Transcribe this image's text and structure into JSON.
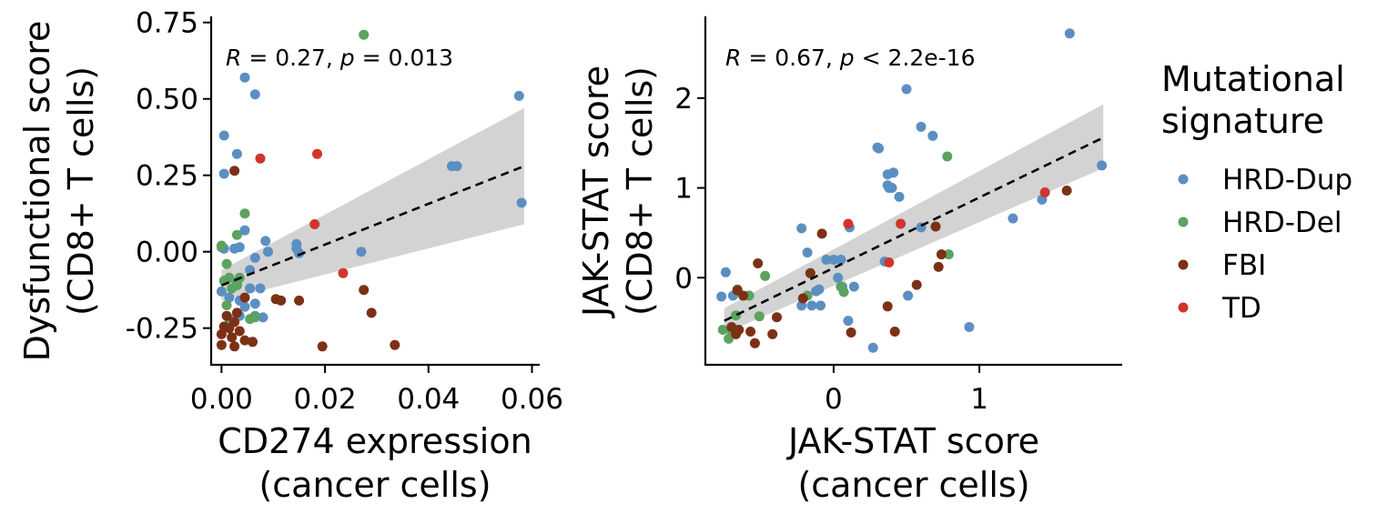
{
  "colors": {
    "HRD-Dup": "#5b8fc2",
    "HRD-Del": "#5ba35e",
    "FBI": "#7c3116",
    "TD": "#d0352b",
    "band": "#d3d3d3",
    "fit": "#000000"
  },
  "legend": {
    "title_line1": "Mutational",
    "title_line2": "signature",
    "entries": [
      "HRD-Dup",
      "HRD-Del",
      "FBI",
      "TD"
    ],
    "placement": "right"
  },
  "chart_data": [
    {
      "type": "scatter",
      "xlabel_line1": "CD274 expression",
      "xlabel_line2": "(cancer cells)",
      "ylabel_line1": "Dysfunctional score",
      "ylabel_line2": "(CD8+ T cells)",
      "annotation": {
        "r_label": "R",
        "r_text": " = 0.27, ",
        "p_label": "p",
        "p_text": " = 0.013"
      },
      "xlim": [
        -0.002,
        0.0615
      ],
      "ylim": [
        -0.37,
        0.77
      ],
      "xticks": [
        0.0,
        0.02,
        0.04,
        0.06
      ],
      "xtick_labels": [
        "0.00",
        "0.02",
        "0.04",
        "0.06"
      ],
      "yticks": [
        -0.25,
        0.0,
        0.25,
        0.5,
        0.75
      ],
      "ytick_labels": [
        "-0.25",
        "0.00",
        "0.25",
        "0.50",
        "0.75"
      ],
      "fit": {
        "x": [
          0.0,
          0.0585
        ],
        "y": [
          -0.11,
          0.28
        ]
      },
      "band": {
        "x": [
          0.0,
          0.0585
        ],
        "lower": [
          -0.16,
          0.09
        ],
        "upper": [
          -0.06,
          0.47
        ]
      },
      "series": [
        {
          "name": "HRD-Dup",
          "points": [
            [
              0.0045,
              0.57
            ],
            [
              0.0065,
              0.515
            ],
            [
              0.0005,
              0.38
            ],
            [
              0.003,
              0.32
            ],
            [
              0.0005,
              0.255
            ],
            [
              0.0045,
              0.07
            ],
            [
              0.0085,
              0.035
            ],
            [
              0.0,
              0.015
            ],
            [
              0.0005,
              0.01
            ],
            [
              0.0025,
              0.01
            ],
            [
              0.0035,
              0.015
            ],
            [
              0.0145,
              0.025
            ],
            [
              0.0145,
              0.01
            ],
            [
              0.015,
              -0.005
            ],
            [
              0.009,
              0.0
            ],
            [
              0.0065,
              -0.02
            ],
            [
              0.0055,
              -0.06
            ],
            [
              0.003,
              -0.1
            ],
            [
              0.0055,
              -0.12
            ],
            [
              0.0075,
              -0.12
            ],
            [
              0.0015,
              -0.15
            ],
            [
              0.0035,
              -0.16
            ],
            [
              0.0045,
              -0.18
            ],
            [
              0.0065,
              -0.17
            ],
            [
              0.0035,
              -0.21
            ],
            [
              0.0065,
              -0.21
            ],
            [
              0.008,
              -0.215
            ],
            [
              0.0,
              -0.13
            ],
            [
              0.0015,
              -0.22
            ],
            [
              0.027,
              0.0
            ],
            [
              0.0445,
              0.28
            ],
            [
              0.0455,
              0.28
            ],
            [
              0.0575,
              0.51
            ],
            [
              0.058,
              0.16
            ]
          ]
        },
        {
          "name": "HRD-Del",
          "points": [
            [
              0.0275,
              0.71
            ],
            [
              0.0045,
              0.125
            ],
            [
              0.003,
              0.055
            ],
            [
              0.0,
              0.02
            ],
            [
              0.001,
              -0.04
            ],
            [
              0.0015,
              -0.085
            ],
            [
              0.0035,
              -0.085
            ],
            [
              0.0005,
              -0.095
            ],
            [
              0.003,
              -0.11
            ],
            [
              0.002,
              -0.12
            ],
            [
              0.001,
              -0.175
            ],
            [
              0.0055,
              -0.22
            ],
            [
              0.0065,
              -0.215
            ],
            [
              0.0015,
              -0.24
            ]
          ]
        },
        {
          "name": "FBI",
          "points": [
            [
              0.0025,
              0.265
            ],
            [
              0.0045,
              -0.15
            ],
            [
              0.003,
              -0.2
            ],
            [
              0.001,
              -0.21
            ],
            [
              0.0025,
              -0.23
            ],
            [
              0.0035,
              -0.26
            ],
            [
              0.0015,
              -0.25
            ],
            [
              0.0,
              -0.27
            ],
            [
              0.002,
              -0.28
            ],
            [
              0.0045,
              -0.29
            ],
            [
              0.006,
              -0.295
            ],
            [
              0.0025,
              -0.31
            ],
            [
              0.0,
              -0.305
            ],
            [
              0.0005,
              -0.245
            ],
            [
              0.0105,
              -0.155
            ],
            [
              0.0115,
              -0.16
            ],
            [
              0.015,
              -0.16
            ],
            [
              0.0195,
              -0.31
            ],
            [
              0.0275,
              -0.125
            ],
            [
              0.029,
              -0.2
            ],
            [
              0.0335,
              -0.305
            ]
          ]
        },
        {
          "name": "TD",
          "points": [
            [
              0.0075,
              0.305
            ],
            [
              0.0185,
              0.32
            ],
            [
              0.018,
              0.09
            ],
            [
              0.0235,
              -0.07
            ]
          ]
        }
      ]
    },
    {
      "type": "scatter",
      "xlabel_line1": "JAK-STAT score",
      "xlabel_line2": "(cancer cells)",
      "ylabel_line1": "JAK-STAT score",
      "ylabel_line2": "(CD8+ T cells)",
      "annotation": {
        "r_label": "R",
        "r_text": " = 0.67, ",
        "p_label": "p",
        "p_text": " < 2.2e-16"
      },
      "xlim": [
        -0.88,
        1.98
      ],
      "ylim": [
        -0.97,
        2.91
      ],
      "xticks": [
        0,
        1
      ],
      "xtick_labels": [
        "0",
        "1"
      ],
      "yticks": [
        0,
        1,
        2
      ],
      "ytick_labels": [
        "0",
        "1",
        "2"
      ],
      "fit": {
        "x": [
          -0.75,
          1.85
        ],
        "y": [
          -0.48,
          1.56
        ]
      },
      "band": {
        "x": [
          -0.75,
          1.85
        ],
        "lower": [
          -0.62,
          1.22
        ],
        "upper": [
          -0.34,
          1.93
        ]
      },
      "series": [
        {
          "name": "HRD-Dup",
          "points": [
            [
              1.62,
              2.72
            ],
            [
              0.5,
              2.1
            ],
            [
              0.6,
              1.68
            ],
            [
              0.68,
              1.58
            ],
            [
              0.3,
              1.45
            ],
            [
              0.31,
              1.44
            ],
            [
              0.37,
              1.15
            ],
            [
              0.41,
              1.17
            ],
            [
              0.37,
              1.03
            ],
            [
              0.38,
              1.0
            ],
            [
              0.4,
              1.0
            ],
            [
              0.45,
              0.9
            ],
            [
              1.84,
              1.25
            ],
            [
              1.43,
              0.87
            ],
            [
              1.23,
              0.66
            ],
            [
              0.6,
              0.56
            ],
            [
              0.11,
              0.56
            ],
            [
              -0.22,
              0.55
            ],
            [
              -0.18,
              0.28
            ],
            [
              0.35,
              0.18
            ],
            [
              -0.05,
              0.2
            ],
            [
              0.0,
              0.2
            ],
            [
              0.05,
              0.2
            ],
            [
              0.03,
              0.0
            ],
            [
              0.06,
              -0.1
            ],
            [
              0.14,
              -0.1
            ],
            [
              -0.1,
              -0.13
            ],
            [
              -0.12,
              -0.15
            ],
            [
              0.51,
              -0.2
            ],
            [
              -0.22,
              -0.31
            ],
            [
              -0.15,
              -0.31
            ],
            [
              -0.09,
              -0.31
            ],
            [
              0.1,
              -0.48
            ],
            [
              0.93,
              -0.55
            ],
            [
              0.27,
              -0.78
            ],
            [
              -0.74,
              0.06
            ],
            [
              -0.69,
              -0.2
            ],
            [
              -0.58,
              -0.2
            ],
            [
              -0.77,
              -0.21
            ]
          ]
        },
        {
          "name": "HRD-Del",
          "points": [
            [
              0.78,
              1.35
            ],
            [
              0.79,
              0.26
            ],
            [
              -0.47,
              0.02
            ],
            [
              -0.66,
              -0.13
            ],
            [
              -0.58,
              -0.2
            ],
            [
              -0.18,
              -0.2
            ],
            [
              0.05,
              -0.1
            ],
            [
              0.07,
              -0.16
            ],
            [
              -0.51,
              -0.43
            ],
            [
              -0.67,
              -0.42
            ],
            [
              -0.76,
              -0.58
            ],
            [
              -0.7,
              -0.6
            ],
            [
              -0.72,
              -0.68
            ]
          ]
        },
        {
          "name": "FBI",
          "points": [
            [
              1.6,
              0.97
            ],
            [
              0.7,
              0.57
            ],
            [
              -0.08,
              0.49
            ],
            [
              -0.52,
              0.16
            ],
            [
              -0.16,
              0.05
            ],
            [
              0.74,
              0.26
            ],
            [
              0.72,
              0.12
            ],
            [
              0.57,
              -0.08
            ],
            [
              -0.21,
              -0.23
            ],
            [
              -0.39,
              -0.44
            ],
            [
              -0.66,
              -0.14
            ],
            [
              -0.62,
              -0.2
            ],
            [
              0.37,
              -0.32
            ],
            [
              -0.7,
              -0.55
            ],
            [
              -0.65,
              -0.58
            ],
            [
              -0.57,
              -0.6
            ],
            [
              -0.67,
              -0.63
            ],
            [
              -0.42,
              -0.63
            ],
            [
              0.42,
              -0.6
            ],
            [
              0.12,
              -0.61
            ],
            [
              -0.54,
              -0.73
            ]
          ]
        },
        {
          "name": "TD",
          "points": [
            [
              1.45,
              0.95
            ],
            [
              0.1,
              0.6
            ],
            [
              0.46,
              0.6
            ],
            [
              0.38,
              0.17
            ]
          ]
        }
      ]
    }
  ]
}
